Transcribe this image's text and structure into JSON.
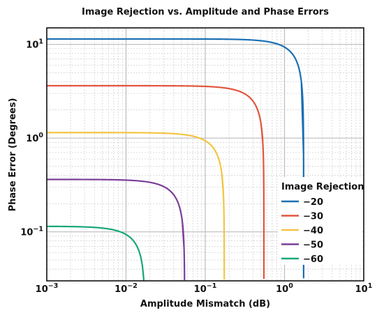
{
  "chart_data": {
    "type": "line",
    "title": "Image Rejection vs. Amplitude and Phase Errors",
    "xlabel": "Amplitude Mismatch (dB)",
    "ylabel": "Phase Error (Degrees)",
    "x_scale": "log",
    "y_scale": "log",
    "xlim": [
      0.001,
      10
    ],
    "ylim": [
      0.03,
      15
    ],
    "x_ticks": [
      {
        "base": "10",
        "exp": "−3"
      },
      {
        "base": "10",
        "exp": "−2"
      },
      {
        "base": "10",
        "exp": "−1"
      },
      {
        "base": "10",
        "exp": "0"
      },
      {
        "base": "10",
        "exp": "1"
      }
    ],
    "y_ticks": [
      {
        "base": "10",
        "exp": "−1"
      },
      {
        "base": "10",
        "exp": "0"
      },
      {
        "base": "10",
        "exp": "1"
      }
    ],
    "grid": true,
    "legend": {
      "title": "Image Rejection",
      "position": "lower-right"
    },
    "series": [
      {
        "name": "−20",
        "rejection_db": -20,
        "color": "#1a6fb3",
        "max_phase_deg": 11.4,
        "max_amplitude_db": 1.74
      },
      {
        "name": "−30",
        "rejection_db": -30,
        "color": "#e2553d",
        "max_phase_deg": 3.62,
        "max_amplitude_db": 0.55
      },
      {
        "name": "−40",
        "rejection_db": -40,
        "color": "#f4c543",
        "max_phase_deg": 1.146,
        "max_amplitude_db": 0.174
      },
      {
        "name": "−50",
        "rejection_db": -50,
        "color": "#7b3f98",
        "max_phase_deg": 0.362,
        "max_amplitude_db": 0.055
      },
      {
        "name": "−60",
        "rejection_db": -60,
        "color": "#17a67a",
        "max_phase_deg": 0.1146,
        "max_amplitude_db": 0.0174
      }
    ]
  }
}
